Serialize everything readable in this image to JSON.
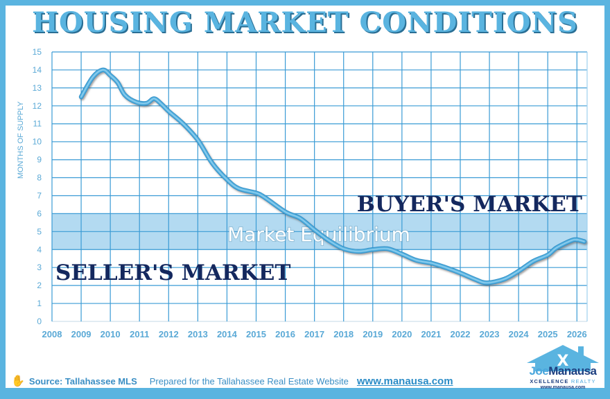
{
  "title": "HOUSING MARKET CONDITIONS",
  "colors": {
    "border": "#5ab4e0",
    "title": "#5ab4e0",
    "grid": "#3a9bd5",
    "line": "#5ab4e0",
    "equilibrium_band": "#b3daf1",
    "market_label": "#14285e",
    "axis_text": "#5aa9d6"
  },
  "chart_data": {
    "type": "line",
    "title": "HOUSING MARKET CONDITIONS",
    "xlabel": "",
    "ylabel": "MONTHS OF SUPPLY",
    "xlim": [
      2008,
      2026.35
    ],
    "ylim": [
      0,
      15
    ],
    "grid": true,
    "x_ticks": [
      2008,
      2009,
      2010,
      2011,
      2012,
      2013,
      2014,
      2015,
      2016,
      2017,
      2018,
      2019,
      2020,
      2021,
      2022,
      2023,
      2024,
      2025,
      2026
    ],
    "y_ticks": [
      0,
      1,
      2,
      3,
      4,
      5,
      6,
      7,
      8,
      9,
      10,
      11,
      12,
      13,
      14,
      15
    ],
    "series": [
      {
        "name": "Months of Supply",
        "x": [
          2009.0,
          2009.4,
          2009.75,
          2010.0,
          2010.25,
          2010.5,
          2010.9,
          2011.25,
          2011.5,
          2011.75,
          2012.0,
          2012.5,
          2013.0,
          2013.5,
          2014.0,
          2014.4,
          2015.0,
          2015.3,
          2016.0,
          2016.5,
          2017.0,
          2017.5,
          2018.0,
          2018.5,
          2019.0,
          2019.5,
          2020.0,
          2020.5,
          2021.0,
          2021.5,
          2022.0,
          2022.5,
          2022.9,
          2023.5,
          2024.0,
          2024.5,
          2025.0,
          2025.3,
          2025.8,
          2026.0,
          2026.25
        ],
        "values": [
          12.5,
          13.6,
          14.0,
          13.7,
          13.3,
          12.6,
          12.2,
          12.15,
          12.4,
          12.1,
          11.7,
          11.0,
          10.1,
          8.8,
          7.9,
          7.4,
          7.15,
          6.9,
          6.1,
          5.75,
          5.1,
          4.5,
          4.05,
          3.9,
          4.0,
          4.05,
          3.75,
          3.4,
          3.25,
          3.0,
          2.7,
          2.35,
          2.15,
          2.35,
          2.8,
          3.35,
          3.7,
          4.1,
          4.5,
          4.55,
          4.45
        ]
      }
    ],
    "bands": [
      {
        "name": "Market Equilibrium",
        "from": 4,
        "to": 6
      }
    ],
    "annotations": [
      {
        "text": "BUYER'S MARKET",
        "region": "above 6 months"
      },
      {
        "text": "Market Equilibrium",
        "region": "4-6 months"
      },
      {
        "text": "SELLER'S MARKET",
        "region": "below 4 months"
      }
    ]
  },
  "annotations": {
    "buyers": "BUYER'S MARKET",
    "equilibrium": "Market Equilibrium",
    "sellers": "SELLER'S MARKET"
  },
  "footer": {
    "source": "Source: Tallahassee MLS",
    "prepared": "Prepared for the Tallahassee Real Estate Website",
    "url": "www.manausa.com"
  },
  "logo": {
    "first": "Joe",
    "last": "Manausa",
    "tagline_a": "XCELLENCE",
    "tagline_b": "REALTY",
    "url": "www.manausa.com"
  }
}
